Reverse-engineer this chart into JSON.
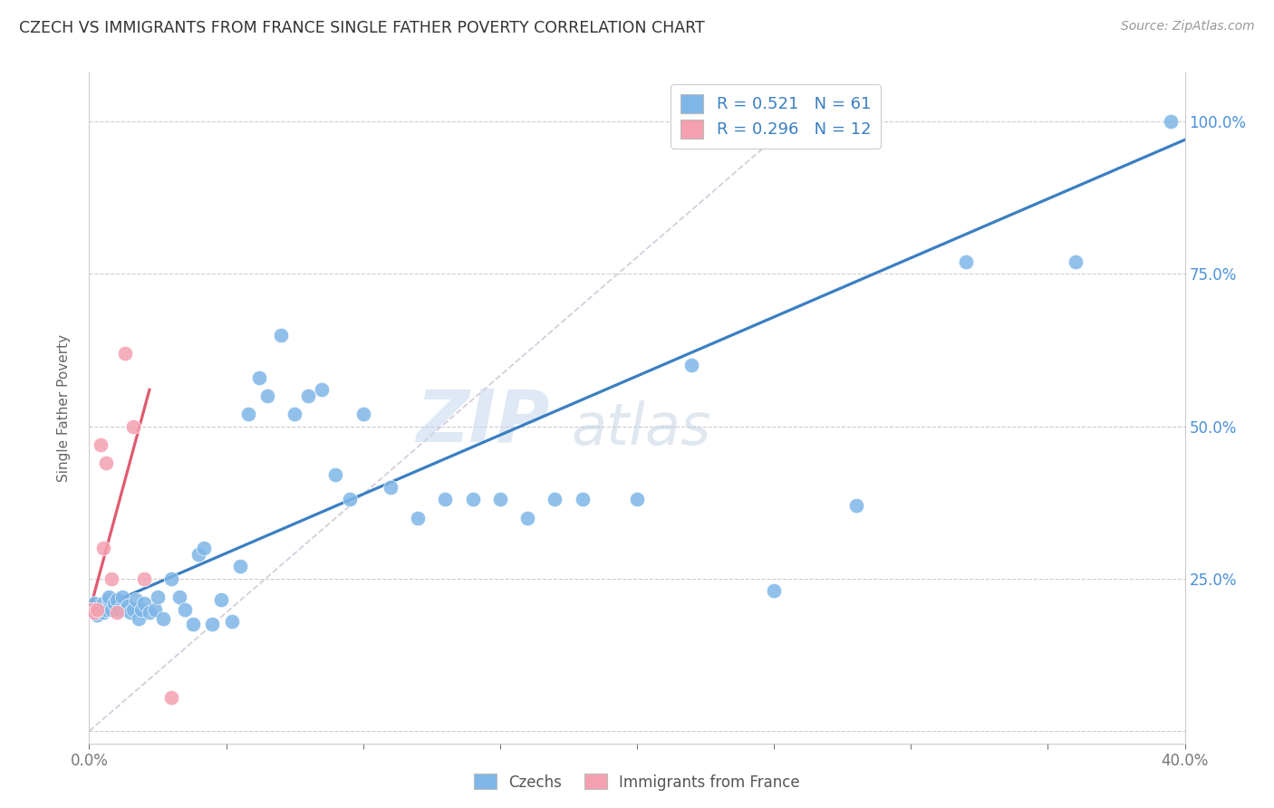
{
  "title": "CZECH VS IMMIGRANTS FROM FRANCE SINGLE FATHER POVERTY CORRELATION CHART",
  "source": "Source: ZipAtlas.com",
  "ylabel": "Single Father Poverty",
  "xlim": [
    0.0,
    0.4
  ],
  "ylim": [
    -0.02,
    1.08
  ],
  "blue_color": "#7EB6E8",
  "pink_color": "#F4A0B0",
  "blue_line_color": "#3A7FC1",
  "pink_line_color": "#E05A6E",
  "diag_color": "#D0C8D8",
  "watermark_zip": "ZIP",
  "watermark_atlas": "atlas",
  "czechs_label": "Czechs",
  "france_label": "Immigrants from France",
  "blue_scatter_x": [
    0.001,
    0.002,
    0.003,
    0.004,
    0.005,
    0.005,
    0.006,
    0.007,
    0.007,
    0.008,
    0.009,
    0.01,
    0.011,
    0.012,
    0.013,
    0.014,
    0.015,
    0.016,
    0.017,
    0.018,
    0.019,
    0.02,
    0.022,
    0.024,
    0.025,
    0.027,
    0.03,
    0.033,
    0.035,
    0.038,
    0.04,
    0.042,
    0.045,
    0.048,
    0.052,
    0.055,
    0.058,
    0.062,
    0.065,
    0.07,
    0.075,
    0.08,
    0.085,
    0.09,
    0.095,
    0.1,
    0.11,
    0.12,
    0.13,
    0.14,
    0.15,
    0.16,
    0.17,
    0.18,
    0.2,
    0.22,
    0.25,
    0.28,
    0.32,
    0.36,
    0.395
  ],
  "blue_scatter_y": [
    0.2,
    0.21,
    0.19,
    0.2,
    0.21,
    0.195,
    0.2,
    0.215,
    0.22,
    0.2,
    0.21,
    0.215,
    0.2,
    0.22,
    0.2,
    0.205,
    0.195,
    0.2,
    0.215,
    0.185,
    0.2,
    0.21,
    0.195,
    0.2,
    0.22,
    0.185,
    0.25,
    0.22,
    0.2,
    0.175,
    0.29,
    0.3,
    0.175,
    0.215,
    0.18,
    0.27,
    0.52,
    0.58,
    0.55,
    0.65,
    0.52,
    0.55,
    0.56,
    0.42,
    0.38,
    0.52,
    0.4,
    0.35,
    0.38,
    0.38,
    0.38,
    0.35,
    0.38,
    0.38,
    0.38,
    0.6,
    0.23,
    0.37,
    0.77,
    0.77,
    1.0
  ],
  "pink_scatter_x": [
    0.001,
    0.002,
    0.003,
    0.004,
    0.005,
    0.006,
    0.008,
    0.01,
    0.013,
    0.016,
    0.02,
    0.03
  ],
  "pink_scatter_y": [
    0.2,
    0.195,
    0.2,
    0.47,
    0.3,
    0.44,
    0.25,
    0.195,
    0.62,
    0.5,
    0.25,
    0.055
  ],
  "blue_line_x0": 0.0,
  "blue_line_x1": 0.4,
  "blue_line_y0": 0.195,
  "blue_line_y1": 0.97,
  "pink_line_x0": 0.0,
  "pink_line_x1": 0.022,
  "pink_line_y0": 0.195,
  "pink_line_y1": 0.56,
  "diag_line_x0": 0.0,
  "diag_line_x1": 0.265,
  "diag_line_y0": 0.0,
  "diag_line_y1": 1.03,
  "yticks": [
    0.0,
    0.25,
    0.5,
    0.75,
    1.0
  ],
  "ytick_right_labels": [
    "",
    "25.0%",
    "50.0%",
    "75.0%",
    "100.0%"
  ],
  "xticks": [
    0.0,
    0.05,
    0.1,
    0.15,
    0.2,
    0.25,
    0.3,
    0.35,
    0.4
  ],
  "xtick_labels": [
    "0.0%",
    "",
    "",
    "",
    "",
    "",
    "",
    "",
    "40.0%"
  ]
}
